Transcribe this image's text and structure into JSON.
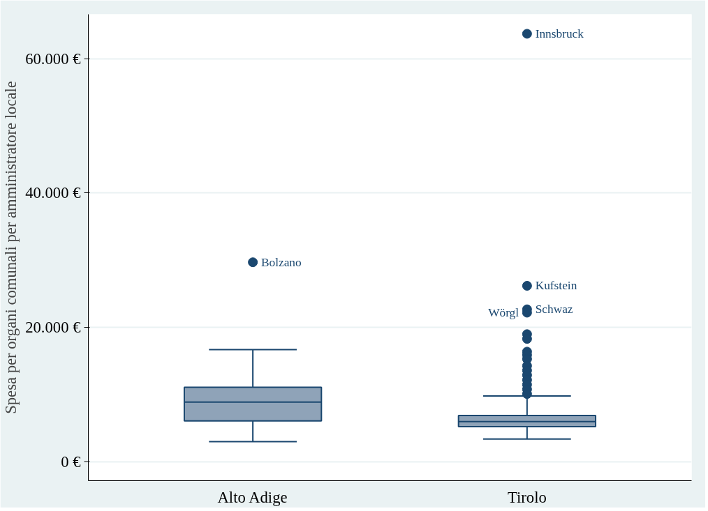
{
  "chart_data": {
    "type": "box",
    "ylabel": "Spesa per organi comunali per amministratore locale",
    "categories": [
      "Alto Adige",
      "Tirolo"
    ],
    "boxes": [
      {
        "low": 3000,
        "q1": 6100,
        "median": 8900,
        "q3": 11100,
        "high": 16700
      },
      {
        "low": 3400,
        "q1": 5250,
        "median": 6000,
        "q3": 6900,
        "high": 9800
      }
    ],
    "color": "#8fa3b8",
    "ylim": [
      -2800,
      66600
    ],
    "series": [
      {
        "type": "scatter",
        "color": "#1a476f",
        "x": [
          "Alto Adige",
          "Tirolo",
          "Tirolo",
          "Tirolo",
          "Tirolo",
          "Tirolo",
          "Tirolo",
          "Tirolo",
          "Tirolo",
          "Tirolo",
          "Tirolo",
          "Tirolo",
          "Tirolo",
          "Tirolo",
          "Tirolo",
          "Tirolo",
          "Tirolo"
        ],
        "values": [
          29700,
          63700,
          26200,
          22700,
          22200,
          19000,
          18300,
          16400,
          15900,
          15300,
          14300,
          13600,
          12900,
          12200,
          11500,
          10800,
          10100
        ]
      }
    ],
    "marker": "circle",
    "yticks": [
      {
        "value": 0,
        "label": "0 €"
      },
      {
        "value": 20000,
        "label": "20.000 €"
      },
      {
        "value": 40000,
        "label": "40.000 €"
      },
      {
        "value": 60000,
        "label": "60.000 €"
      }
    ],
    "grid": "y",
    "annotations": [
      {
        "text": "Bolzano",
        "x": "Alto Adige",
        "y": 29700
      },
      {
        "text": "Innsbruck",
        "x": "Tirolo",
        "y": 63700
      },
      {
        "text": "Kufstein",
        "x": "Tirolo",
        "y": 26200
      },
      {
        "text": "Schwaz",
        "x": "Tirolo",
        "y": 22700
      },
      {
        "text": "Wörgl",
        "x": "Tirolo",
        "y": 22200
      }
    ]
  }
}
